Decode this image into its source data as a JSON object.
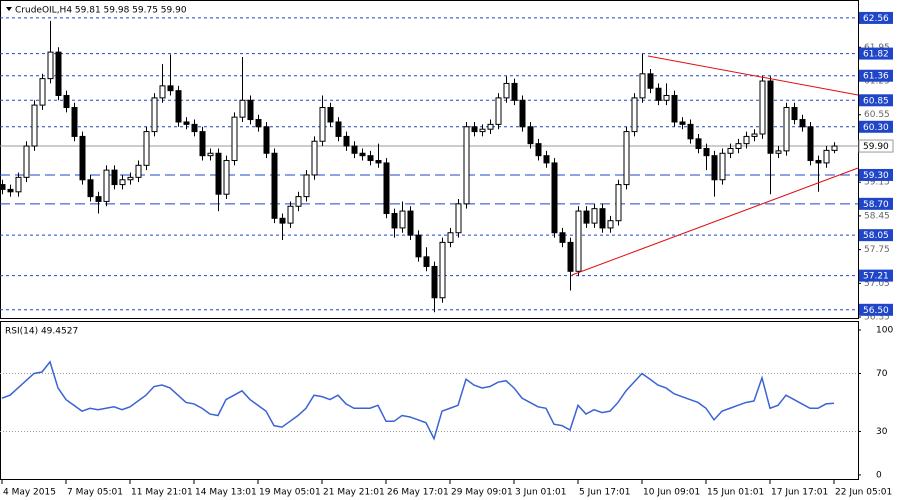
{
  "chart_data": {
    "type": "candlestick",
    "title": "CrudeOIL,H4  59.81 59.98 59.75 59.90",
    "categories": [
      "4 May 2015",
      null,
      null,
      null,
      null,
      null,
      null,
      null,
      "7 May 05:01",
      null,
      null,
      null,
      null,
      null,
      null,
      null,
      "11 May 21:01",
      null,
      null,
      null,
      null,
      null,
      null,
      null,
      "14 May 13:01",
      null,
      null,
      null,
      null,
      null,
      null,
      null,
      "19 May 05:01",
      null,
      null,
      null,
      null,
      null,
      null,
      null,
      "21 May 21:01",
      null,
      null,
      null,
      null,
      null,
      null,
      null,
      "26 May 17:01",
      null,
      null,
      null,
      null,
      null,
      null,
      null,
      "29 May 09:01",
      null,
      null,
      null,
      null,
      null,
      null,
      null,
      "3 Jun 01:01",
      null,
      null,
      null,
      null,
      null,
      null,
      null,
      "5 Jun 17:01",
      null,
      null,
      null,
      null,
      null,
      null,
      null,
      "10 Jun 09:01",
      null,
      null,
      null,
      null,
      null,
      null,
      null,
      "15 Jun 01:01",
      null,
      null,
      null,
      null,
      null,
      null,
      null,
      "17 Jun 17:01",
      null,
      null,
      null,
      null,
      null,
      null,
      null,
      "22 Jun 05:01"
    ],
    "open": [
      59.1,
      59.0,
      58.95,
      59.25,
      59.9,
      60.75,
      61.3,
      61.85,
      60.95,
      60.7,
      60.1,
      59.2,
      58.85,
      58.75,
      59.4,
      59.1,
      59.2,
      59.25,
      59.5,
      60.2,
      60.9,
      61.15,
      61.05,
      60.4,
      60.35,
      60.2,
      59.7,
      59.75,
      58.9,
      59.6,
      60.5,
      60.85,
      60.45,
      60.3,
      59.75,
      58.4,
      58.3,
      58.65,
      58.85,
      59.3,
      60.0,
      60.7,
      60.4,
      60.1,
      59.9,
      59.75,
      59.7,
      59.6,
      59.55,
      58.5,
      58.2,
      58.55,
      58.05,
      57.6,
      57.4,
      56.75,
      57.9,
      58.1,
      58.7,
      60.3,
      60.2,
      60.25,
      60.35,
      60.9,
      61.2,
      60.85,
      60.3,
      59.95,
      59.7,
      59.55,
      58.1,
      57.9,
      57.3,
      58.55,
      58.3,
      58.6,
      58.2,
      58.35,
      59.1,
      60.2,
      60.9,
      61.4,
      61.1,
      60.85,
      60.95,
      60.4,
      60.35,
      60.05,
      59.85,
      59.7,
      59.2,
      59.75,
      59.85,
      59.95,
      60.1,
      60.15,
      61.25,
      59.75,
      59.8,
      60.7,
      60.45,
      60.3,
      59.6,
      59.55,
      59.81
    ],
    "high": [
      59.2,
      59.1,
      59.35,
      60.0,
      60.85,
      61.4,
      62.5,
      61.95,
      61.05,
      60.8,
      60.2,
      59.3,
      58.95,
      59.5,
      59.5,
      59.3,
      59.35,
      59.6,
      60.3,
      61.0,
      61.6,
      61.8,
      61.15,
      60.5,
      60.45,
      60.3,
      59.85,
      59.85,
      59.7,
      60.6,
      61.75,
      60.95,
      60.55,
      60.4,
      59.85,
      58.5,
      58.75,
      58.95,
      59.4,
      60.1,
      60.95,
      60.8,
      60.5,
      60.2,
      60.0,
      59.85,
      59.8,
      59.95,
      59.65,
      58.6,
      58.75,
      58.65,
      58.15,
      57.8,
      57.5,
      58.0,
      58.2,
      58.8,
      60.4,
      60.4,
      60.35,
      60.45,
      61.0,
      61.35,
      61.3,
      60.95,
      60.4,
      60.05,
      59.8,
      59.65,
      58.2,
      58.0,
      58.65,
      58.65,
      58.7,
      58.7,
      58.45,
      59.2,
      60.3,
      61.0,
      61.82,
      61.5,
      61.2,
      61.2,
      61.05,
      60.5,
      60.45,
      60.15,
      59.95,
      59.8,
      59.85,
      59.95,
      60.05,
      60.2,
      60.25,
      61.36,
      61.35,
      59.9,
      60.8,
      60.8,
      60.55,
      60.4,
      59.7,
      59.9,
      59.98
    ],
    "low": [
      58.9,
      58.85,
      58.85,
      59.15,
      59.8,
      60.65,
      61.2,
      60.85,
      60.6,
      60.0,
      59.1,
      58.75,
      58.5,
      58.65,
      59.0,
      59.0,
      59.1,
      59.15,
      59.4,
      60.1,
      60.8,
      60.95,
      60.3,
      60.25,
      60.1,
      59.6,
      59.6,
      58.55,
      58.8,
      59.5,
      60.4,
      60.35,
      60.2,
      59.65,
      58.3,
      57.95,
      58.2,
      58.55,
      58.75,
      59.2,
      59.9,
      60.3,
      60.0,
      59.8,
      59.65,
      59.6,
      59.5,
      59.45,
      58.4,
      58.0,
      58.1,
      57.95,
      57.5,
      57.3,
      56.45,
      56.65,
      57.8,
      58.0,
      58.6,
      60.1,
      60.1,
      60.15,
      60.25,
      60.8,
      60.75,
      60.2,
      59.85,
      59.6,
      59.45,
      58.0,
      57.8,
      56.9,
      57.2,
      58.2,
      58.2,
      58.1,
      58.1,
      58.25,
      59.0,
      60.1,
      60.8,
      61.0,
      60.75,
      60.75,
      60.3,
      60.25,
      59.95,
      59.75,
      59.4,
      58.85,
      59.1,
      59.65,
      59.75,
      59.85,
      60.0,
      60.05,
      58.9,
      59.65,
      59.7,
      60.35,
      60.2,
      59.5,
      58.95,
      59.45,
      59.75
    ],
    "close": [
      59.0,
      58.95,
      59.25,
      59.9,
      60.75,
      61.3,
      61.85,
      60.95,
      60.7,
      60.1,
      59.2,
      58.85,
      58.75,
      59.4,
      59.1,
      59.2,
      59.25,
      59.5,
      60.2,
      60.9,
      61.15,
      61.05,
      60.4,
      60.35,
      60.2,
      59.7,
      59.75,
      58.9,
      59.6,
      60.5,
      60.85,
      60.45,
      60.3,
      59.75,
      58.4,
      58.3,
      58.65,
      58.85,
      59.3,
      60.0,
      60.7,
      60.4,
      60.1,
      59.9,
      59.75,
      59.7,
      59.6,
      59.55,
      58.5,
      58.2,
      58.55,
      58.05,
      57.6,
      57.4,
      56.75,
      57.9,
      58.1,
      58.7,
      60.3,
      60.2,
      60.25,
      60.35,
      60.9,
      61.2,
      60.85,
      60.3,
      59.95,
      59.7,
      59.55,
      58.1,
      57.9,
      57.3,
      58.55,
      58.3,
      58.6,
      58.2,
      58.35,
      59.1,
      60.2,
      60.9,
      61.4,
      61.1,
      60.85,
      60.95,
      60.4,
      60.35,
      60.05,
      59.85,
      59.7,
      59.2,
      59.75,
      59.85,
      59.95,
      60.1,
      60.15,
      61.25,
      59.75,
      59.8,
      60.7,
      60.45,
      60.3,
      59.6,
      59.55,
      59.81,
      59.9
    ],
    "bull_color": "#ffffff",
    "bear_color": "#000000",
    "ylim": [
      56.33,
      62.87
    ],
    "yticks": [
      61.95,
      61.25,
      60.55,
      59.15,
      58.45,
      57.75,
      57.05,
      56.35
    ],
    "levels": [
      62.56,
      61.82,
      61.36,
      60.85,
      {
        "value": 60.3,
        "label": "60.30"
      },
      58.05,
      57.21,
      {
        "value": 56.5,
        "label": "56.50"
      }
    ],
    "key_levels": [
      {
        "value": 59.3,
        "label": "59.30"
      },
      {
        "value": 58.7,
        "label": "58.70"
      }
    ],
    "level_color": "#1f46c8",
    "last_price": {
      "value": 59.9,
      "label": "59.90"
    },
    "indicator": {
      "type": "line",
      "title": "RSI(14) 49.4527",
      "color": "#3b63d6",
      "values": [
        53,
        55,
        60,
        65,
        70,
        71,
        78,
        60,
        52,
        48,
        44,
        46,
        45,
        46,
        47,
        45,
        47,
        51,
        55,
        61,
        62,
        60,
        55,
        50,
        49,
        46,
        42,
        41,
        52,
        55,
        58,
        52,
        48,
        44,
        34,
        33,
        37,
        41,
        46,
        55,
        54,
        52,
        55,
        49,
        46,
        46,
        46,
        48,
        37,
        37,
        41,
        40,
        38,
        36,
        25,
        44,
        46,
        48,
        66,
        62,
        60,
        61,
        64,
        65,
        60,
        53,
        50,
        47,
        46,
        35,
        34,
        31,
        48,
        42,
        45,
        43,
        44,
        50,
        58,
        64,
        70,
        66,
        62,
        60,
        56,
        54,
        52,
        50,
        46,
        38,
        44,
        46,
        48,
        50,
        51,
        67,
        46,
        48,
        55,
        52,
        49,
        46,
        46,
        49,
        49.45
      ],
      "ylim": [
        -2.8,
        105.5
      ],
      "yticks": [
        0,
        30,
        70,
        100
      ],
      "dotted_levels": [
        30,
        70
      ]
    }
  }
}
